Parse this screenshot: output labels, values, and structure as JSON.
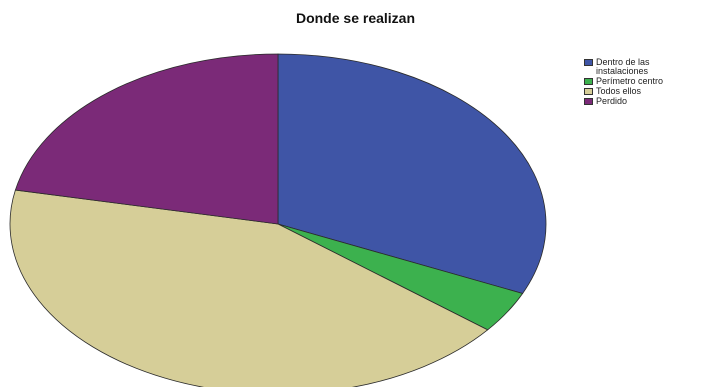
{
  "chart_data": {
    "type": "pie",
    "title": "Donde se realizan",
    "categories": [
      "Dentro de las instalaciones",
      "Perímetro centro",
      "Todos ellos",
      "Perdido"
    ],
    "values": [
      31.7,
      4.0,
      42.5,
      21.8
    ],
    "colors": [
      "#3f55a6",
      "#3cb14e",
      "#d6ce98",
      "#7b2a78"
    ],
    "legend_position": "top-right",
    "start_angle": "12 o'clock, clockwise"
  }
}
